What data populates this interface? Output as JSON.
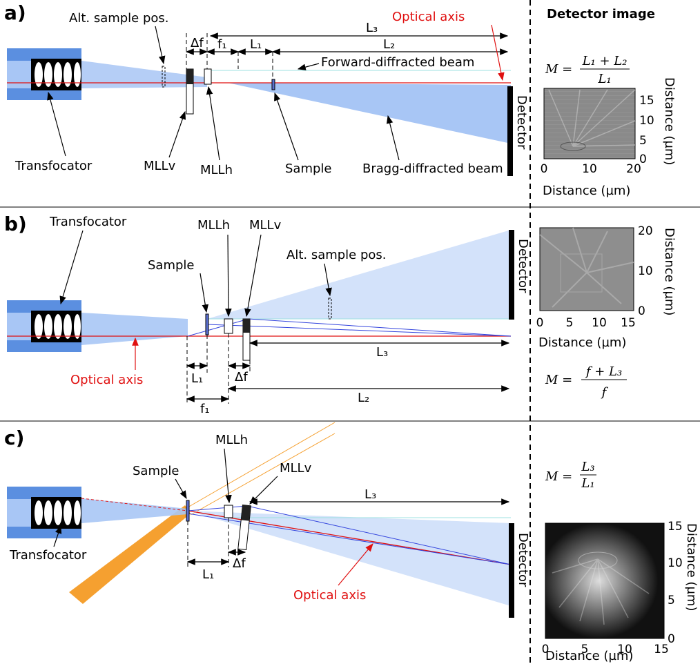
{
  "detector_title": "Detector image",
  "panels": [
    {
      "label": "a)",
      "texts": [
        "Alt. sample pos.",
        "Optical axis",
        "Forward-diffracted beam",
        "Transfocator",
        "MLLv",
        "MLLh",
        "Sample",
        "Bragg-diffracted beam",
        "Detector"
      ],
      "dimensions": [
        "Δf",
        "f₁",
        "L₁",
        "L₂",
        "L₃"
      ],
      "equation": {
        "lhs": "M =",
        "numerator": "L₁ + L₂",
        "denominator": "L₁"
      },
      "image": {
        "x_ticks": [
          0,
          10,
          20
        ],
        "y_ticks": [
          0,
          5,
          10,
          15
        ],
        "x_label": "Distance (µm)",
        "y_label": "Distance (µm)"
      }
    },
    {
      "label": "b)",
      "texts": [
        "Transfocator",
        "MLLh",
        "MLLv",
        "Sample",
        "Alt. sample pos.",
        "Detector",
        "Optical axis"
      ],
      "dimensions": [
        "L₁",
        "Δf",
        "f₁",
        "L₂",
        "L₃"
      ],
      "equation": {
        "lhs": "M =",
        "numerator": "f + L₃",
        "denominator": "f"
      },
      "image": {
        "x_ticks": [
          0,
          5,
          10,
          15
        ],
        "y_ticks": [
          0,
          10,
          20
        ],
        "x_label": "Distance (µm)",
        "y_label": "Distance (µm)"
      }
    },
    {
      "label": "c)",
      "texts": [
        "Sample",
        "MLLh",
        "MLLv",
        "Transfocator",
        "Optical axis",
        "Detector"
      ],
      "dimensions": [
        "L₃",
        "L₁",
        "Δf"
      ],
      "equation": {
        "lhs": "M =",
        "numerator": "L₃",
        "denominator": "L₁"
      },
      "image": {
        "x_ticks": [
          0,
          5,
          10,
          15
        ],
        "y_ticks": [
          0,
          5,
          10,
          15
        ],
        "x_label": "Distance (µm)",
        "y_label": "Distance (µm)"
      }
    }
  ]
}
